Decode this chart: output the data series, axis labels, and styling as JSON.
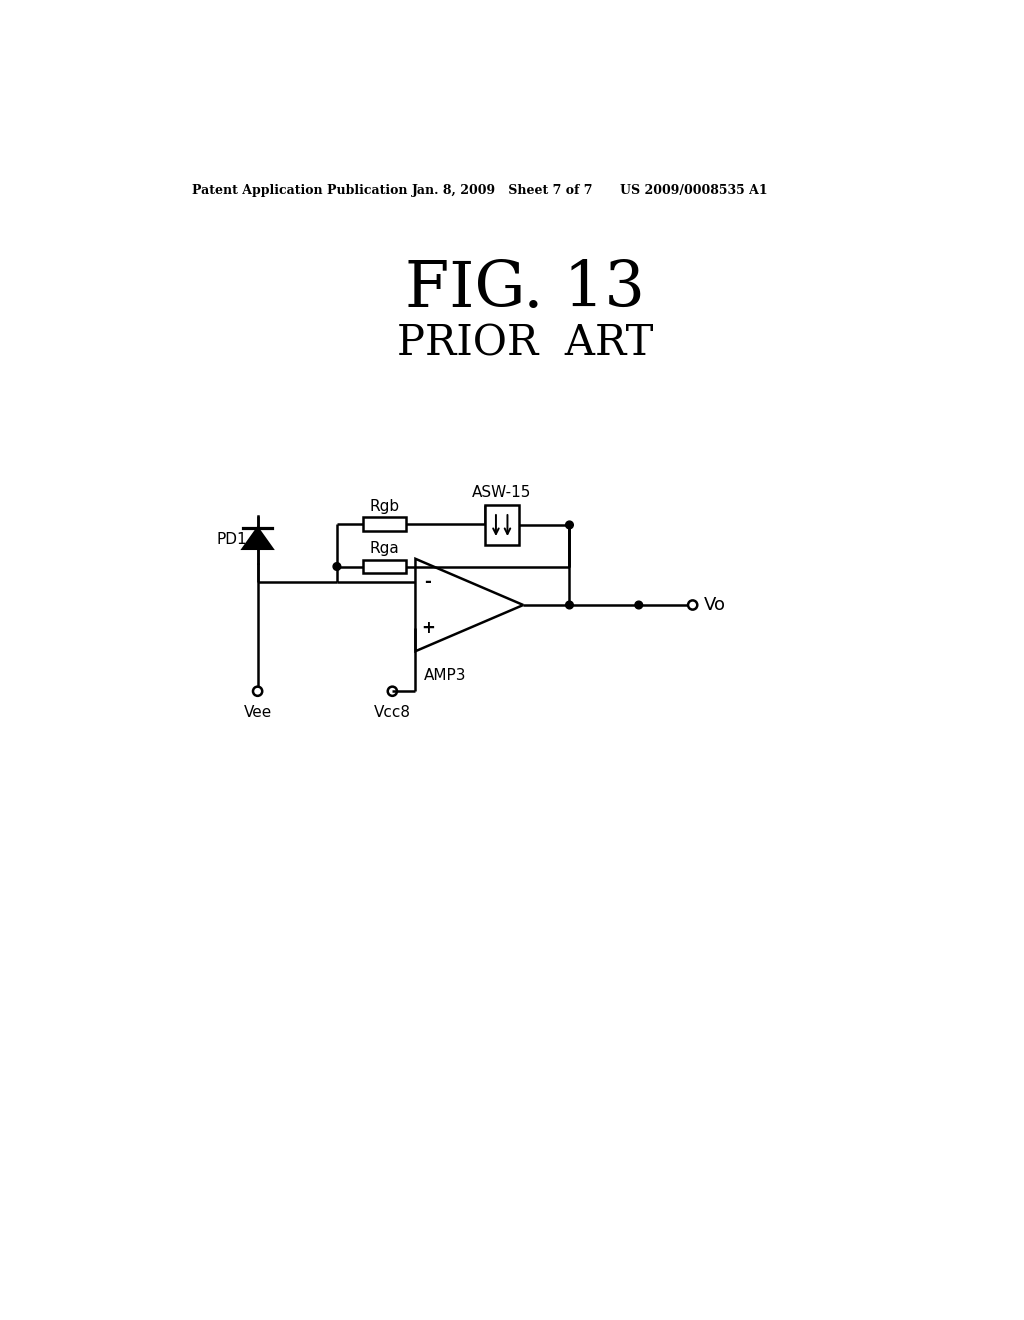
{
  "title": "FIG. 13",
  "subtitle": "PRIOR  ART",
  "header_left": "Patent Application Publication",
  "header_mid": "Jan. 8, 2009   Sheet 7 of 7",
  "header_right": "US 2009/0008535 A1",
  "background": "#ffffff",
  "line_color": "#000000",
  "lw": 1.8
}
